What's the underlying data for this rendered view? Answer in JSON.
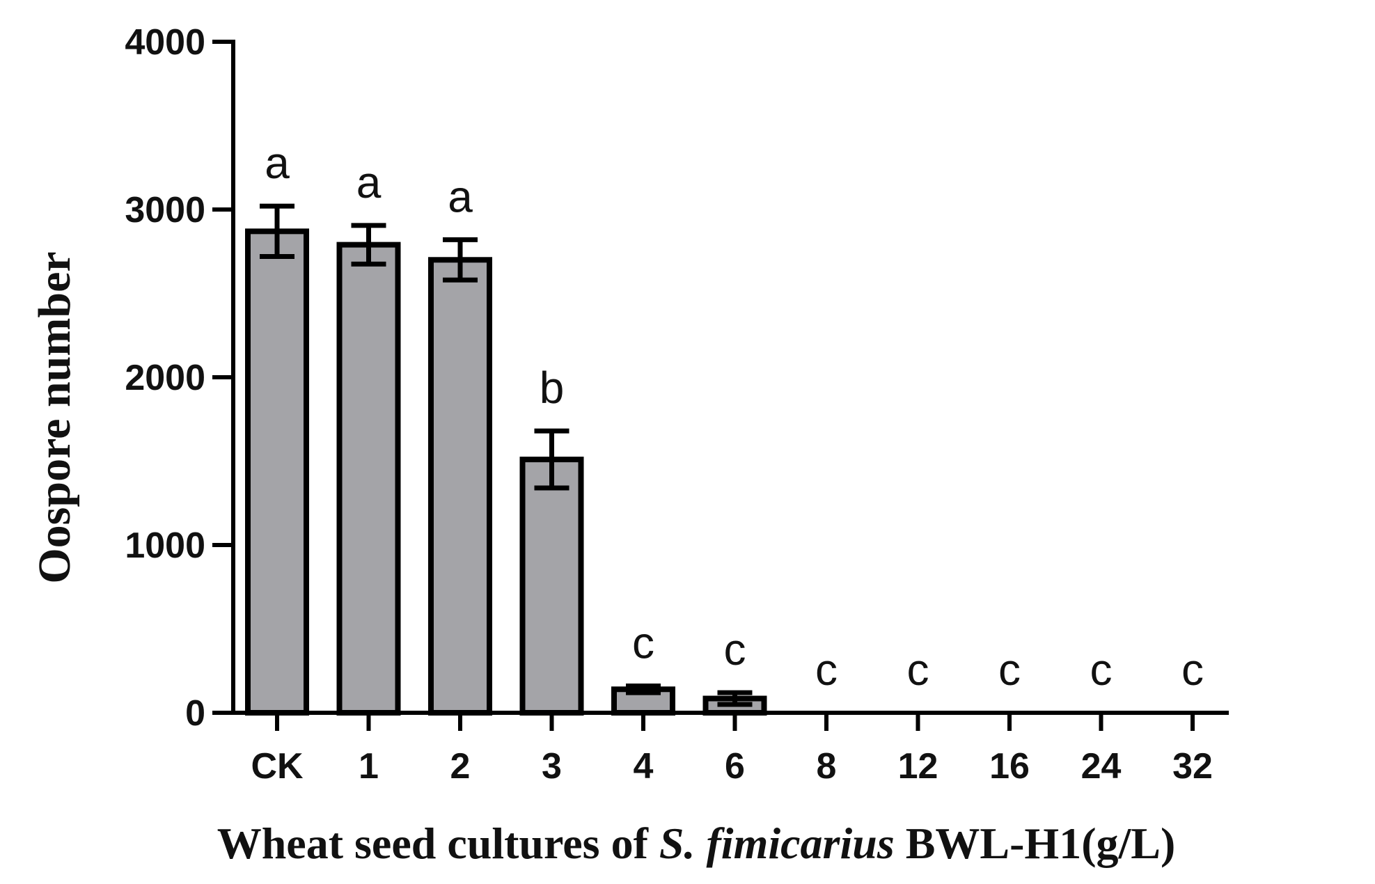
{
  "chart_data": {
    "type": "bar",
    "categories": [
      "CK",
      "1",
      "2",
      "3",
      "4",
      "6",
      "8",
      "12",
      "16",
      "24",
      "32"
    ],
    "values": [
      2870,
      2790,
      2700,
      1510,
      140,
      85,
      0,
      0,
      0,
      0,
      0
    ],
    "errors": [
      150,
      115,
      120,
      170,
      20,
      35,
      0,
      0,
      0,
      0,
      0
    ],
    "significance": [
      "a",
      "a",
      "a",
      "b",
      "c",
      "c",
      "c",
      "c",
      "c",
      "c",
      "c"
    ],
    "ylim": [
      0,
      4000
    ],
    "yticks": [
      0,
      1000,
      2000,
      3000,
      4000
    ],
    "ylabel": "Oospore number",
    "xlabel": {
      "prefix": "Wheat seed cultures of ",
      "species": "S. fimicarius",
      "suffix": " BWL-H1(g/L)"
    },
    "bar_color": "#a4a4a8",
    "edge_color": "#000000",
    "grid": false,
    "legend": "none"
  }
}
